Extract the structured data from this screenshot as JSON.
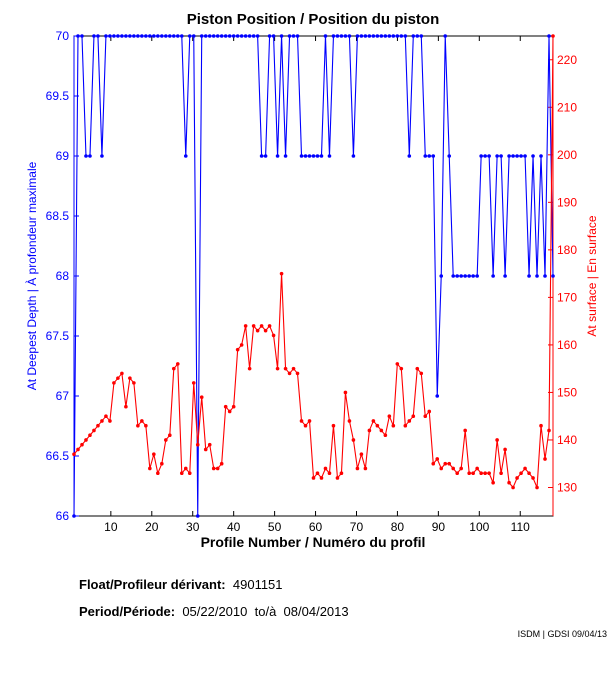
{
  "chart_data": {
    "type": "line",
    "title": "Piston Position / Position du piston",
    "xlabel": "Profile Number / Numéro du profil",
    "ylabel_left": "At Deepest Depth | À profondeur maximale",
    "ylabel_right": "At surface | En surface",
    "xlim": [
      1,
      118
    ],
    "ylim_left": [
      66,
      70
    ],
    "ylim_right": [
      124,
      225
    ],
    "x_ticks": [
      10,
      20,
      30,
      40,
      50,
      60,
      70,
      80,
      90,
      100,
      110
    ],
    "y_left_ticks": [
      "66",
      "66.5",
      "67",
      "67.5",
      "68",
      "68.5",
      "69",
      "69.5",
      "70"
    ],
    "y_right_ticks": [
      "130",
      "140",
      "150",
      "160",
      "170",
      "180",
      "190",
      "200",
      "210",
      "220"
    ],
    "series": [
      {
        "name": "At Deepest Depth",
        "axis": "left",
        "color": "#0000ff",
        "values": [
          66,
          70,
          70,
          69,
          69,
          70,
          70,
          69,
          70,
          70,
          70,
          70,
          70,
          70,
          70,
          70,
          70,
          70,
          70,
          70,
          70,
          70,
          70,
          70,
          70,
          70,
          70,
          70,
          69,
          70,
          70,
          66,
          70,
          70,
          70,
          70,
          70,
          70,
          70,
          70,
          70,
          70,
          70,
          70,
          70,
          70,
          70,
          69,
          69,
          70,
          70,
          69,
          70,
          69,
          70,
          70,
          70,
          69,
          69,
          69,
          69,
          69,
          69,
          70,
          69,
          70,
          70,
          70,
          70,
          70,
          69,
          70,
          70,
          70,
          70,
          70,
          70,
          70,
          70,
          70,
          70,
          70,
          70,
          70,
          69,
          70,
          70,
          70,
          69,
          69,
          69,
          67,
          68,
          70,
          69,
          68,
          68,
          68,
          68,
          68,
          68,
          68,
          69,
          69,
          69,
          68,
          69,
          69,
          68,
          69,
          69,
          69,
          69,
          69,
          68,
          69,
          68,
          69,
          68,
          70,
          68
        ]
      },
      {
        "name": "At surface",
        "axis": "right",
        "color": "#ff0000",
        "values": [
          137,
          138,
          139,
          140,
          141,
          142,
          143,
          144,
          145,
          144,
          152,
          153,
          154,
          147,
          153,
          152,
          143,
          144,
          143,
          134,
          137,
          133,
          135,
          140,
          141,
          155,
          156,
          133,
          134,
          133,
          152,
          139,
          149,
          138,
          139,
          134,
          134,
          135,
          147,
          146,
          147,
          159,
          160,
          164,
          155,
          164,
          163,
          164,
          163,
          164,
          162,
          155,
          175,
          155,
          154,
          155,
          154,
          144,
          143,
          144,
          132,
          133,
          132,
          134,
          133,
          143,
          132,
          133,
          150,
          144,
          140,
          134,
          137,
          134,
          142,
          144,
          143,
          142,
          141,
          145,
          143,
          156,
          155,
          143,
          144,
          145,
          155,
          154,
          145,
          146,
          135,
          136,
          134,
          135,
          135,
          134,
          133,
          134,
          142,
          133,
          133,
          134,
          133,
          133,
          133,
          131,
          140,
          133,
          138,
          131,
          130,
          132,
          133,
          134,
          133,
          132,
          130,
          143,
          136,
          142,
          225
        ]
      }
    ]
  },
  "info": {
    "float_label": "Float/Profileur dérivant:",
    "float_value": "4901151",
    "period_label": "Period/Période:",
    "period_start": "05/22/2010",
    "period_sep": "to/à",
    "period_end": "08/04/2013"
  },
  "credit": "ISDM | GDSI 09/04/13",
  "colors": {
    "left": "#0000ff",
    "right": "#ff0000"
  }
}
